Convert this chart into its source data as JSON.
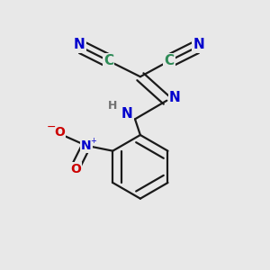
{
  "bg_color": "#e8e8e8",
  "bond_color": "#1a1a1a",
  "bond_width": 1.6,
  "atom_colors": {
    "C": "#2e8b57",
    "N": "#0000cd",
    "O": "#cc0000",
    "H": "#707070"
  },
  "label_fontsize": 11,
  "small_fontsize": 8
}
